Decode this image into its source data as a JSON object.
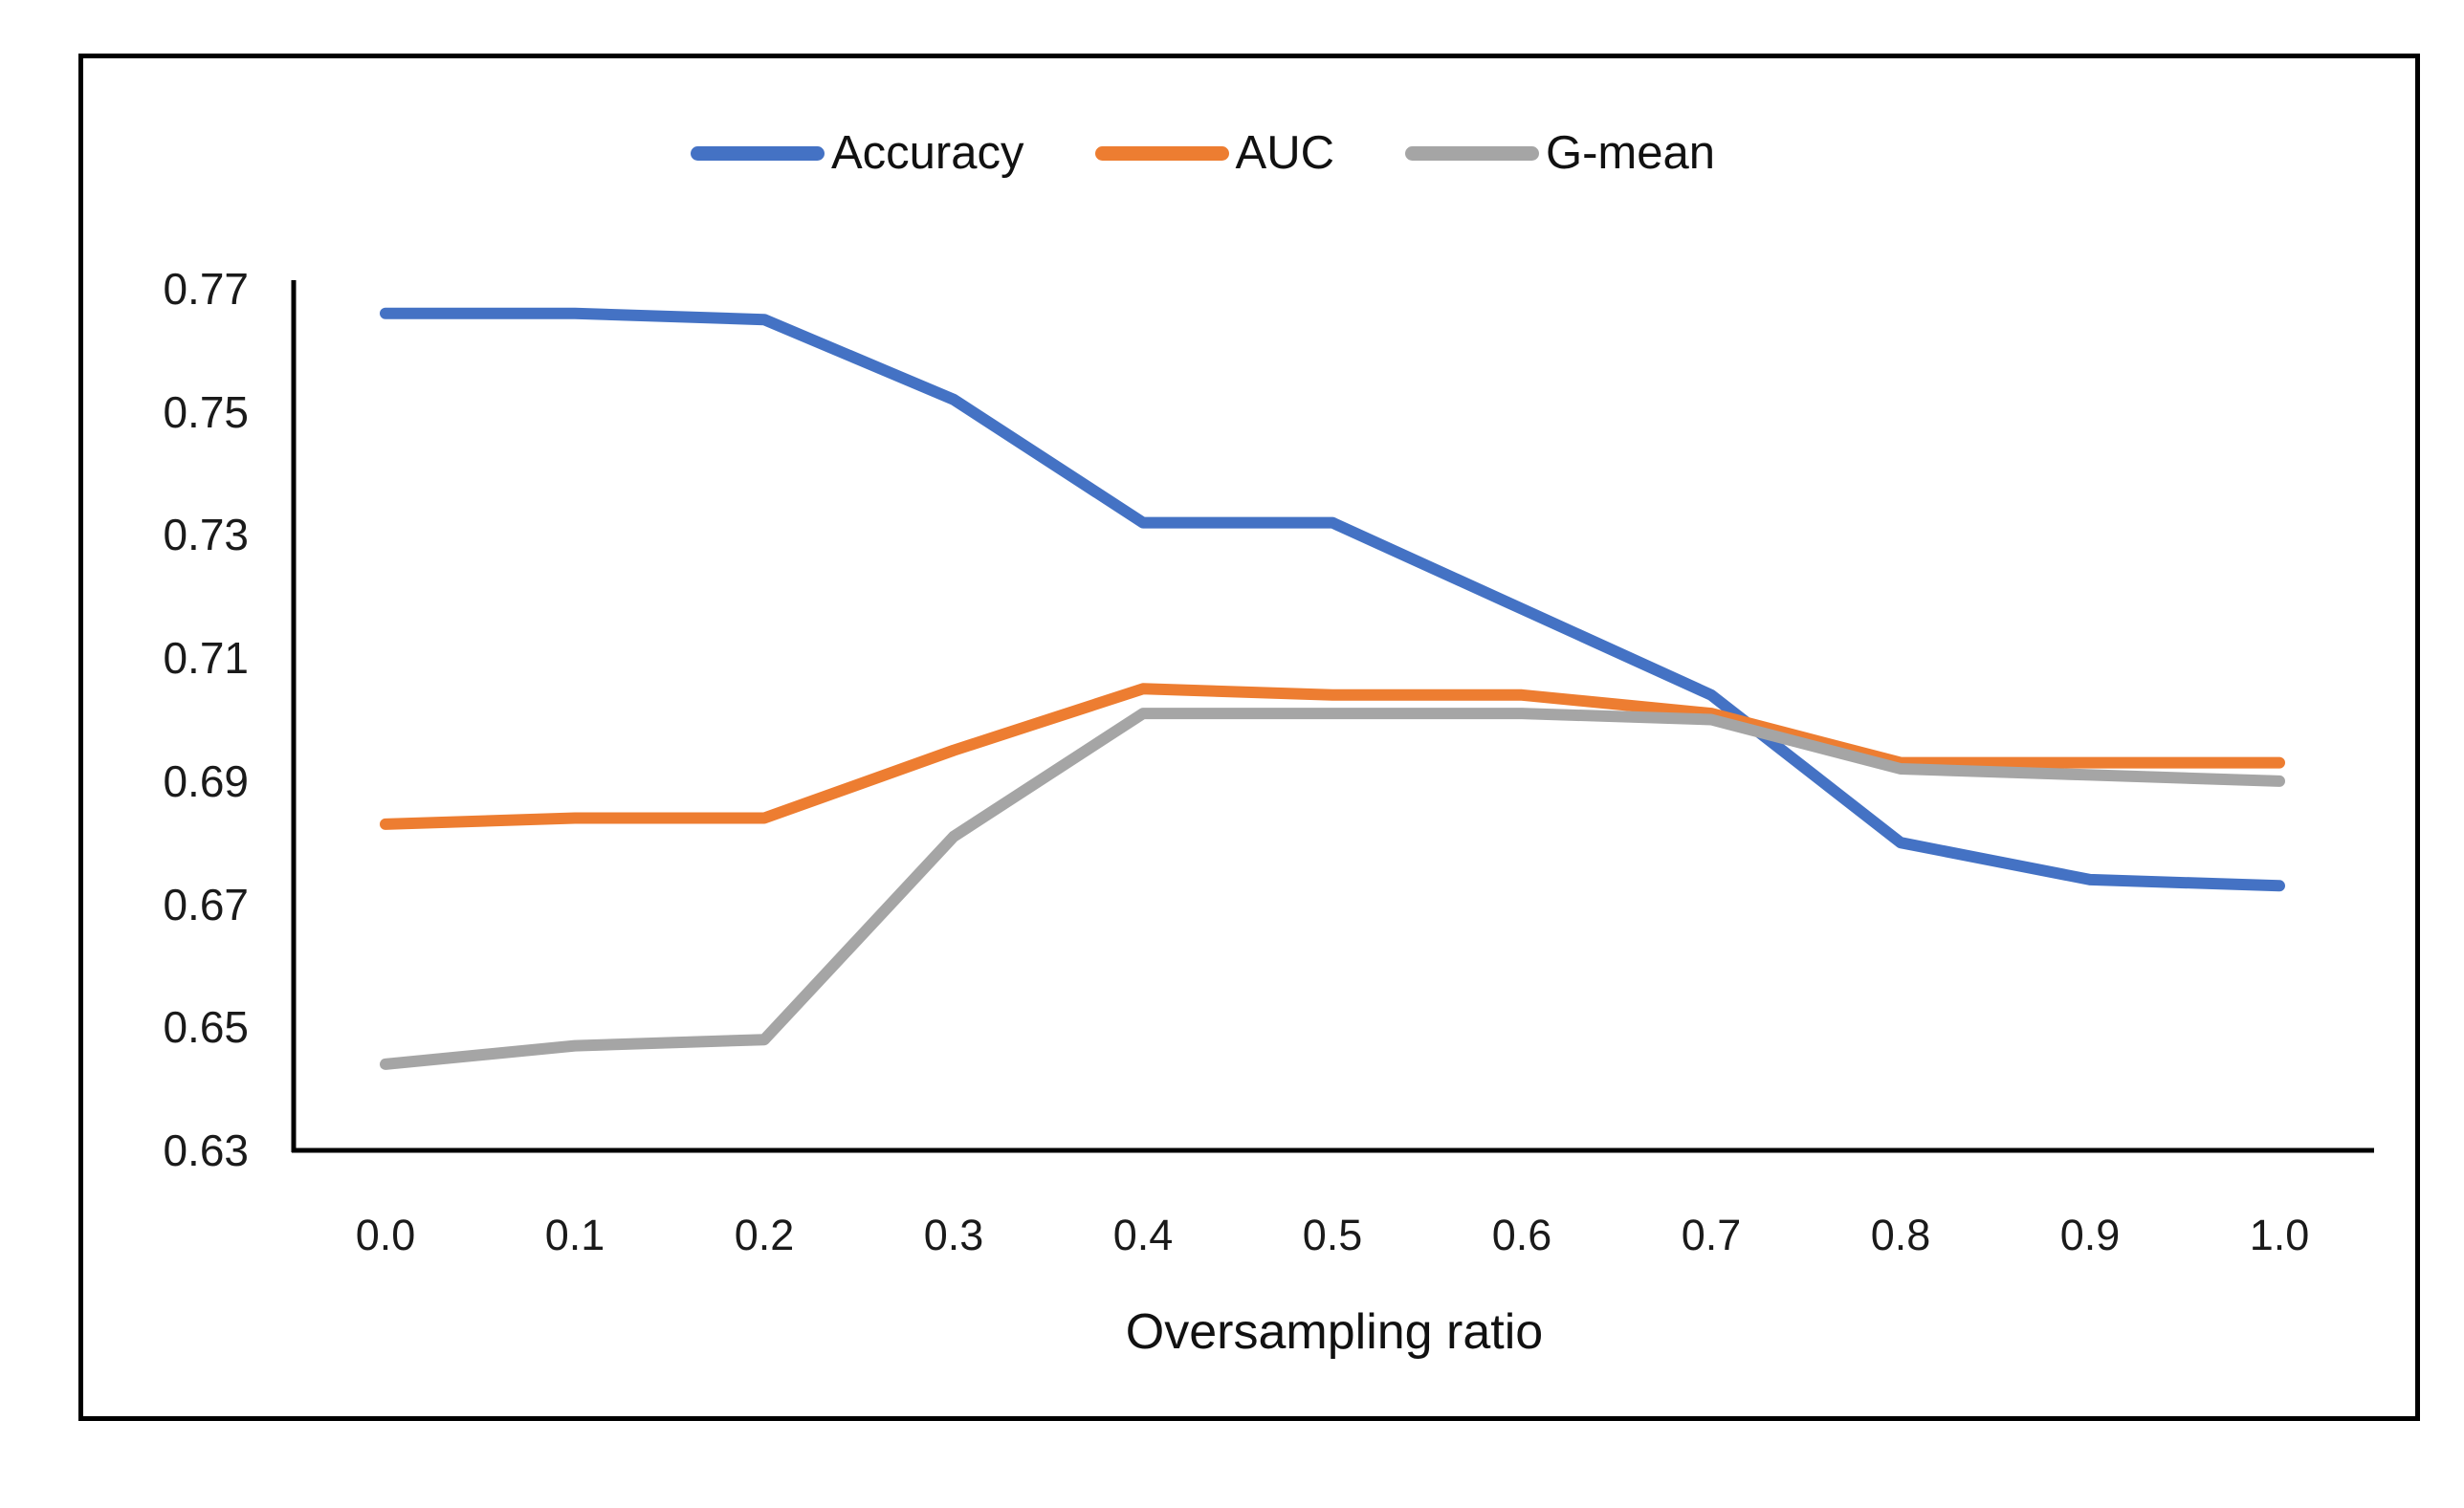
{
  "colors": {
    "accuracy": "#4472C4",
    "auc": "#ED7D31",
    "gmean": "#A5A5A5",
    "axis": "#000000",
    "border": "#000000",
    "text": "#1a1a1a"
  },
  "chart_data": {
    "type": "line",
    "x": [
      0.0,
      0.1,
      0.2,
      0.3,
      0.4,
      0.5,
      0.6,
      0.7,
      0.8,
      0.9,
      1.0
    ],
    "x_tick_labels": [
      "0.0",
      "0.1",
      "0.2",
      "0.3",
      "0.4",
      "0.5",
      "0.6",
      "0.7",
      "0.8",
      "0.9",
      "1.0"
    ],
    "series": [
      {
        "name": "Accuracy",
        "color": "#4472C4",
        "values": [
          0.766,
          0.766,
          0.765,
          0.752,
          0.732,
          0.732,
          0.718,
          0.704,
          0.68,
          0.674,
          0.673
        ]
      },
      {
        "name": "AUC",
        "color": "#ED7D31",
        "values": [
          0.683,
          0.684,
          0.684,
          0.695,
          0.705,
          0.704,
          0.704,
          0.701,
          0.693,
          0.693,
          0.693
        ]
      },
      {
        "name": "G-mean",
        "color": "#A5A5A5",
        "values": [
          0.644,
          0.647,
          0.648,
          0.681,
          0.701,
          0.701,
          0.701,
          0.7,
          0.692,
          0.691,
          0.69
        ]
      }
    ],
    "title": "",
    "xlabel": "Oversampling ratio",
    "ylabel": "",
    "ylim": [
      0.63,
      0.77
    ],
    "y_ticks": [
      0.77,
      0.75,
      0.73,
      0.71,
      0.69,
      0.67,
      0.65,
      0.63
    ],
    "grid": false,
    "legend_position": "top-center"
  }
}
